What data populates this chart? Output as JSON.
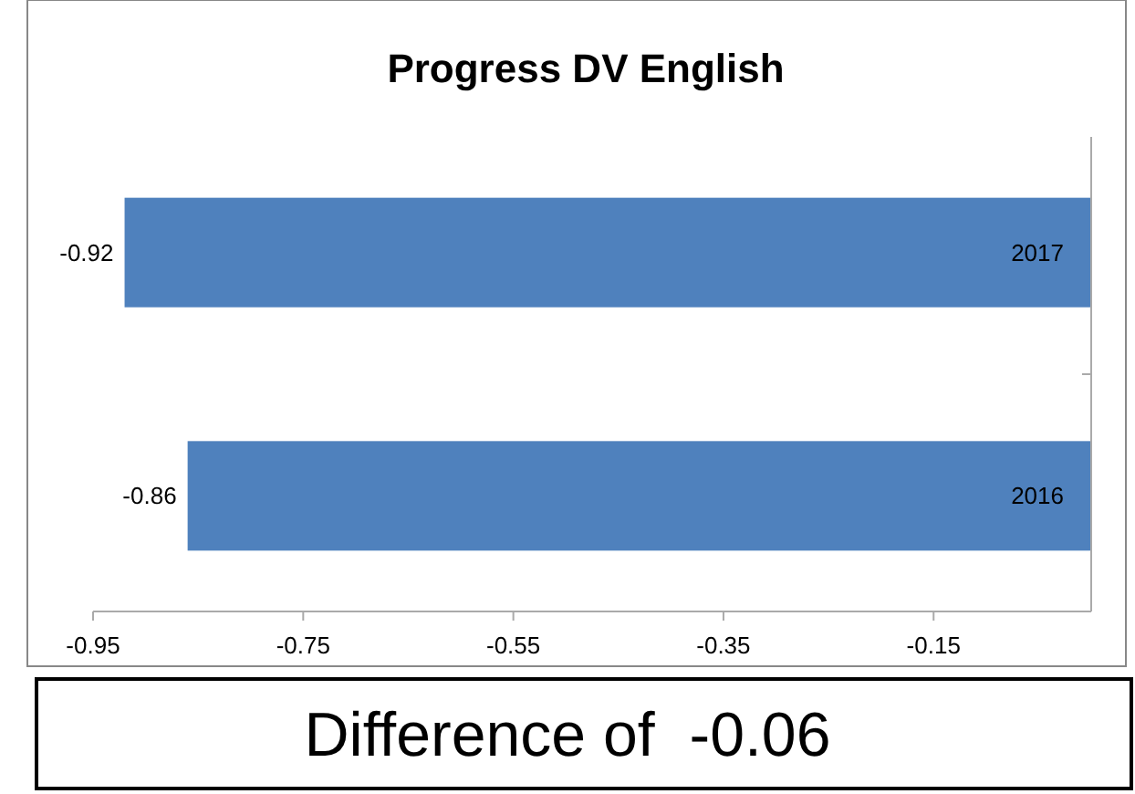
{
  "chart_data": {
    "type": "bar",
    "orientation": "horizontal",
    "title": "Progress DV English",
    "categories": [
      "2017",
      "2016"
    ],
    "values": [
      -0.92,
      -0.86
    ],
    "color": "#4f81bd",
    "xlim": [
      -0.95,
      0
    ],
    "xticks": [
      -0.95,
      -0.75,
      -0.55,
      -0.35,
      -0.15
    ],
    "data_labels": true,
    "grid": false,
    "annotations": [
      "Difference of  -0.06"
    ]
  }
}
